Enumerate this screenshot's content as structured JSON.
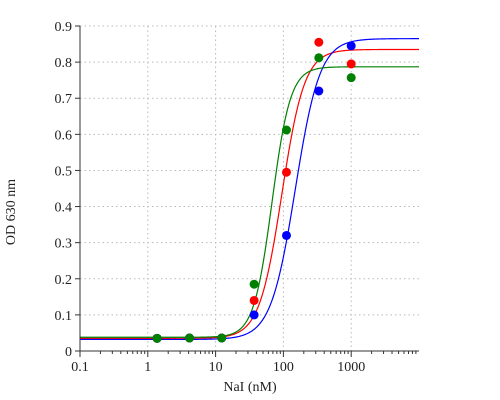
{
  "chart_data": {
    "type": "scatter",
    "xlabel": "NaI (nM)",
    "ylabel": "OD 630 nm",
    "xscale": "log",
    "xlim": [
      0.1,
      10000
    ],
    "ylim": [
      0,
      0.9
    ],
    "x_ticks": [
      0.1,
      1,
      10,
      100,
      1000
    ],
    "x_tick_labels": [
      "0.1",
      "1",
      "10",
      "100",
      "1000"
    ],
    "y_ticks": [
      0,
      0.1,
      0.2,
      0.3,
      0.4,
      0.5,
      0.6,
      0.7,
      0.8,
      0.9
    ],
    "y_tick_labels": [
      "0",
      "0.1",
      "0.2",
      "0.3",
      "0.4",
      "0.5",
      "0.6",
      "0.7",
      "0.8",
      "0.9"
    ],
    "grid": true,
    "series": [
      {
        "color": "#ff0000",
        "x": [
          1.37,
          4.12,
          12.3,
          37,
          111,
          333,
          1000
        ],
        "y": [
          0.035,
          0.036,
          0.036,
          0.14,
          0.495,
          0.855,
          0.795
        ],
        "fit": {
          "bottom": 0.035,
          "top": 0.835,
          "ec50": 95,
          "hill": 2.6
        }
      },
      {
        "color": "#0000ff",
        "x": [
          1.37,
          4.12,
          12.3,
          37,
          111,
          333,
          1000
        ],
        "y": [
          0.035,
          0.036,
          0.036,
          0.1,
          0.32,
          0.72,
          0.845
        ],
        "fit": {
          "bottom": 0.032,
          "top": 0.865,
          "ec50": 150,
          "hill": 2.4
        }
      },
      {
        "color": "#008000",
        "x": [
          1.37,
          4.12,
          12.3,
          37,
          111,
          333,
          1000
        ],
        "y": [
          0.035,
          0.036,
          0.036,
          0.185,
          0.612,
          0.812,
          0.757
        ],
        "fit": {
          "bottom": 0.038,
          "top": 0.787,
          "ec50": 68,
          "hill": 3.2
        }
      }
    ]
  }
}
